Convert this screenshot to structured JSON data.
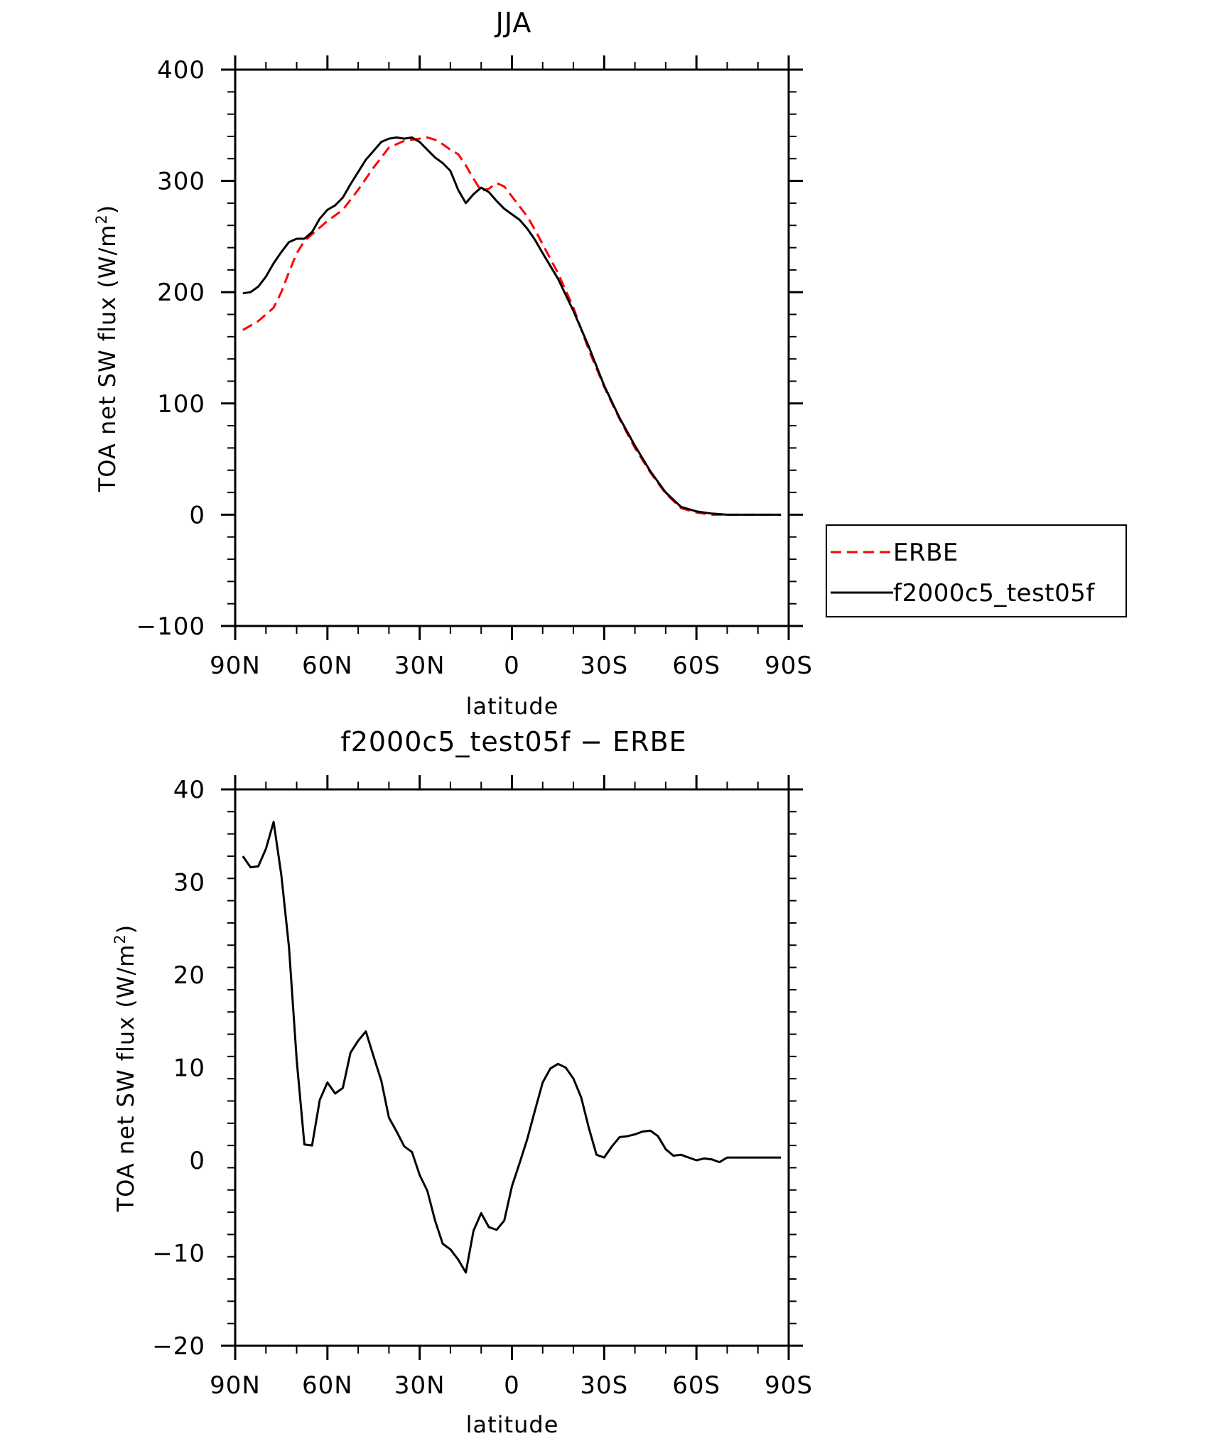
{
  "chart_data": [
    {
      "type": "line",
      "title": "JJA",
      "xlabel": "latitude",
      "ylabel": "TOA net SW flux (W/m",
      "ylabel_sup": "2",
      "ylabel_close": ")",
      "xlim": [
        90,
        -90
      ],
      "ylim": [
        -100,
        400
      ],
      "xticks": [
        {
          "value": 90,
          "label": "90N"
        },
        {
          "value": 60,
          "label": "60N"
        },
        {
          "value": 30,
          "label": "30N"
        },
        {
          "value": 0,
          "label": "0"
        },
        {
          "value": -30,
          "label": "30S"
        },
        {
          "value": -60,
          "label": "60S"
        },
        {
          "value": -90,
          "label": "90S"
        }
      ],
      "yticks": [
        {
          "value": 400,
          "label": "400"
        },
        {
          "value": 300,
          "label": "300"
        },
        {
          "value": 200,
          "label": "200"
        },
        {
          "value": 100,
          "label": "100"
        },
        {
          "value": 0,
          "label": "0"
        },
        {
          "value": -100,
          "label": "−100"
        }
      ],
      "legend": {
        "position": "right"
      },
      "series": [
        {
          "name": "ERBE",
          "color": "#ff0000",
          "dash": "dashed",
          "x": [
            87.5,
            82.5,
            77.5,
            75,
            72.5,
            70,
            67.5,
            65,
            62.5,
            60,
            55,
            50,
            45,
            40,
            35,
            32.5,
            30,
            27.5,
            25,
            22.5,
            20,
            17.5,
            15,
            12.5,
            10,
            7.5,
            5,
            2.5,
            0,
            -2.5,
            -5,
            -7.5,
            -10,
            -15,
            -20,
            -25,
            -30,
            -35,
            -40,
            -45,
            -50,
            -55,
            -60,
            -65,
            -70,
            -75,
            -80,
            -85,
            -87.5
          ],
          "values": [
            166,
            174,
            186,
            200,
            218,
            235,
            246,
            252,
            258,
            264,
            274,
            292,
            312,
            330,
            336,
            337,
            338,
            339,
            337,
            333,
            328,
            324,
            314,
            302,
            291,
            293,
            298,
            295,
            286,
            277,
            268,
            256,
            243,
            217,
            186,
            148,
            115,
            86,
            60,
            38,
            19,
            6,
            2,
            0,
            0,
            0,
            0,
            0,
            0
          ]
        },
        {
          "name": "f2000c5_test05f",
          "color": "#000000",
          "dash": "solid",
          "x": [
            87.5,
            85,
            82.5,
            80,
            77.5,
            75,
            72.5,
            70,
            67.5,
            65,
            62.5,
            60,
            57.5,
            55,
            52.5,
            50,
            47.5,
            45,
            42.5,
            40,
            37.5,
            35,
            32.5,
            30,
            27.5,
            25,
            22.5,
            20,
            17.5,
            15,
            12.5,
            10,
            7.5,
            5,
            2.5,
            0,
            -2.5,
            -5,
            -7.5,
            -10,
            -15,
            -20,
            -25,
            -30,
            -35,
            -40,
            -45,
            -50,
            -55,
            -60,
            -65,
            -70,
            -75,
            -80,
            -85,
            -87.5
          ],
          "values": [
            199,
            200,
            205,
            214,
            226,
            236,
            245,
            248,
            248,
            254,
            266,
            274,
            278,
            285,
            297,
            308,
            319,
            327,
            335,
            338,
            339,
            338,
            339,
            335,
            328,
            321,
            316,
            309,
            292,
            280,
            288,
            294,
            290,
            282,
            275,
            270,
            265,
            257,
            247,
            235,
            212,
            183,
            151,
            116,
            87,
            62,
            39,
            20,
            7,
            3,
            1,
            0,
            0,
            0,
            0,
            0
          ]
        }
      ]
    },
    {
      "type": "line",
      "title": "f2000c5_test05f − ERBE",
      "xlabel": "latitude",
      "ylabel": "TOA net SW flux (W/m",
      "ylabel_sup": "2",
      "ylabel_close": ")",
      "xlim": [
        90,
        -90
      ],
      "ylim": [
        -20,
        40
      ],
      "xticks": [
        {
          "value": 90,
          "label": "90N"
        },
        {
          "value": 60,
          "label": "60N"
        },
        {
          "value": 30,
          "label": "30N"
        },
        {
          "value": 0,
          "label": "0"
        },
        {
          "value": -30,
          "label": "30S"
        },
        {
          "value": -60,
          "label": "60S"
        },
        {
          "value": -90,
          "label": "90S"
        }
      ],
      "yticks": [
        {
          "value": 40,
          "label": "40"
        },
        {
          "value": 30,
          "label": "30"
        },
        {
          "value": 20,
          "label": "20"
        },
        {
          "value": 10,
          "label": "10"
        },
        {
          "value": 0,
          "label": "0"
        },
        {
          "value": -10,
          "label": "−10"
        },
        {
          "value": -20,
          "label": "−20"
        }
      ],
      "series": [
        {
          "name": "f2000c5_test05f - ERBE",
          "color": "#000000",
          "dash": "solid",
          "x": [
            87.5,
            85,
            82.5,
            80,
            77.5,
            75,
            72.5,
            70,
            67.5,
            65,
            62.5,
            60,
            57.5,
            55,
            52.5,
            50,
            47.5,
            45,
            42.5,
            40,
            37.5,
            35,
            32.5,
            30,
            27.5,
            25,
            22.5,
            20,
            17.5,
            15,
            12.5,
            10,
            7.5,
            5,
            2.5,
            0,
            -2.5,
            -5,
            -7.5,
            -10,
            -12.5,
            -15,
            -17.5,
            -20,
            -22.5,
            -25,
            -27.5,
            -30,
            -32.5,
            -35,
            -37.5,
            -40,
            -42.5,
            -45,
            -47.5,
            -50,
            -52.5,
            -55,
            -57.5,
            -60,
            -62.5,
            -65,
            -67.5,
            -70,
            -72.5,
            -75,
            -77.5,
            -80,
            -82.5,
            -85,
            -87.5
          ],
          "values": [
            32.8,
            31.6,
            31.7,
            33.6,
            36.5,
            30.8,
            23.0,
            10.8,
            1.7,
            1.6,
            6.5,
            8.4,
            7.2,
            7.8,
            11.6,
            12.9,
            13.9,
            11.2,
            8.6,
            4.6,
            3.1,
            1.5,
            0.9,
            -1.6,
            -3.3,
            -6.5,
            -9.0,
            -9.6,
            -10.7,
            -12.1,
            -7.6,
            -5.7,
            -7.2,
            -7.5,
            -6.5,
            -2.8,
            -0.3,
            2.3,
            5.4,
            8.4,
            9.9,
            10.4,
            10.0,
            8.8,
            6.8,
            3.5,
            0.6,
            0.3,
            1.5,
            2.5,
            2.6,
            2.8,
            3.1,
            3.2,
            2.6,
            1.2,
            0.5,
            0.6,
            0.3,
            0.0,
            0.2,
            0.1,
            -0.2,
            0.3,
            0.3,
            0.3,
            0.3,
            0.3,
            0.3,
            0.3,
            0.3
          ]
        }
      ]
    }
  ]
}
